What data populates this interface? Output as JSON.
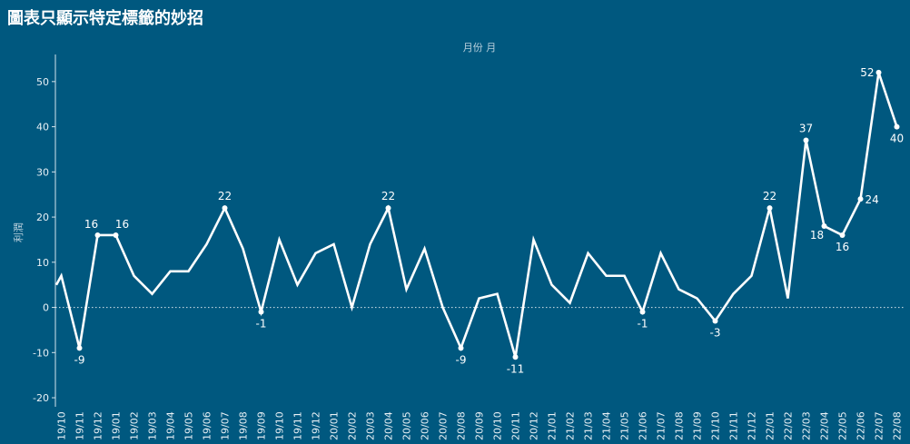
{
  "page": {
    "title": "圖表只顯示特定標籤的妙招"
  },
  "colors": {
    "background": "#00587f",
    "line": "#ffffff",
    "zero_line": "#ffffff"
  },
  "chart_data": {
    "type": "line",
    "title": "",
    "xlabel": "月份 月",
    "ylabel": "利潤",
    "ylim": [
      -22,
      56
    ],
    "yticks": [
      -20,
      -10,
      0,
      10,
      20,
      30,
      40,
      50
    ],
    "categories": [
      "19/10",
      "19/11",
      "19/12",
      "19/01",
      "19/02",
      "19/03",
      "19/04",
      "19/05",
      "19/06",
      "19/07",
      "19/08",
      "19/09",
      "19/10",
      "19/11",
      "19/12",
      "20/01",
      "20/02",
      "20/03",
      "20/04",
      "20/05",
      "20/06",
      "20/07",
      "20/08",
      "20/09",
      "20/10",
      "20/11",
      "20/12",
      "21/01",
      "21/02",
      "21/03",
      "21/04",
      "21/05",
      "21/06",
      "21/07",
      "21/08",
      "21/09",
      "21/10",
      "21/11",
      "21/12",
      "22/01",
      "22/02",
      "22/03",
      "22/04",
      "22/05",
      "22/06",
      "22/07",
      "22/08"
    ],
    "series": [
      {
        "values": [
          7,
          -9,
          16,
          16,
          7,
          3,
          8,
          8,
          14,
          22,
          13,
          -1,
          15,
          5,
          12,
          14,
          0,
          14,
          22,
          4,
          13,
          0,
          -9,
          2,
          3,
          -11,
          15,
          5,
          1,
          12,
          7,
          7,
          -1,
          12,
          4,
          2,
          -3,
          3,
          7,
          22,
          2,
          37,
          18,
          16,
          24,
          52,
          40
        ]
      }
    ],
    "leading_value": 5,
    "labeled_points": [
      {
        "index": 1,
        "label": "-9",
        "pos": "below"
      },
      {
        "index": 2,
        "label": "16",
        "pos": "above-left"
      },
      {
        "index": 3,
        "label": "16",
        "pos": "above-right"
      },
      {
        "index": 9,
        "label": "22",
        "pos": "above"
      },
      {
        "index": 11,
        "label": "-1",
        "pos": "below"
      },
      {
        "index": 18,
        "label": "22",
        "pos": "above"
      },
      {
        "index": 22,
        "label": "-9",
        "pos": "below"
      },
      {
        "index": 25,
        "label": "-11",
        "pos": "below"
      },
      {
        "index": 32,
        "label": "-1",
        "pos": "below"
      },
      {
        "index": 36,
        "label": "-3",
        "pos": "below"
      },
      {
        "index": 39,
        "label": "22",
        "pos": "above"
      },
      {
        "index": 41,
        "label": "37",
        "pos": "above"
      },
      {
        "index": 42,
        "label": "18",
        "pos": "below-left"
      },
      {
        "index": 43,
        "label": "16",
        "pos": "below"
      },
      {
        "index": 44,
        "label": "24",
        "pos": "right"
      },
      {
        "index": 45,
        "label": "52",
        "pos": "left"
      },
      {
        "index": 46,
        "label": "40",
        "pos": "below"
      }
    ],
    "grid": false,
    "zero_line": "dotted"
  }
}
